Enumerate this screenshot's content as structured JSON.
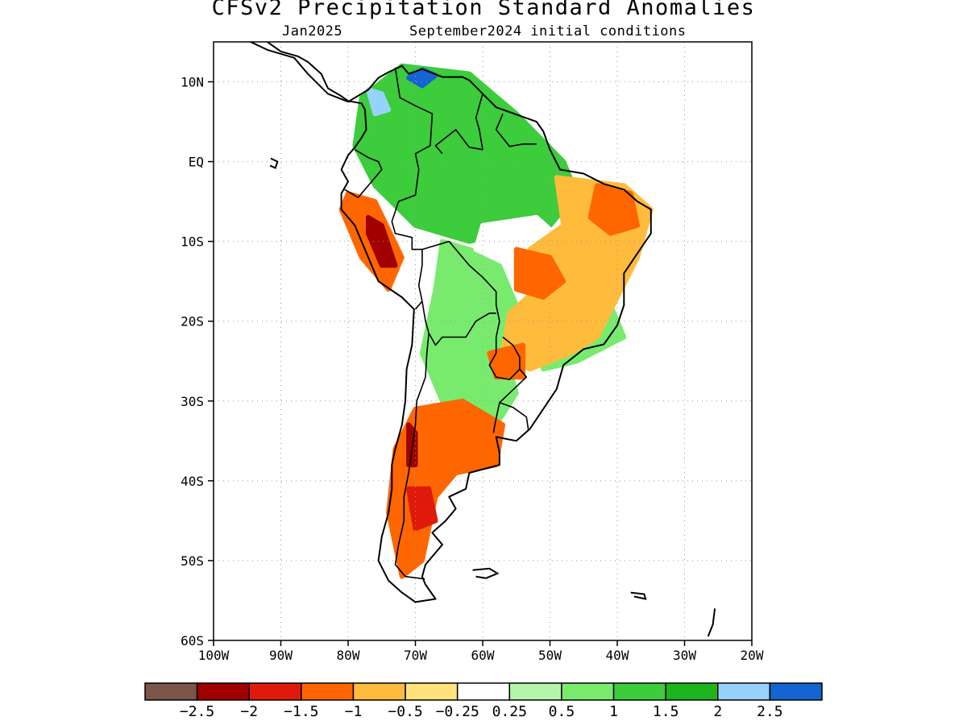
{
  "title": "CFSv2 Precipitation Standard Anomalies",
  "subtitle": {
    "valid_month": "Jan2025",
    "init": "September2024 initial conditions"
  },
  "map": {
    "lon_range": [
      -100,
      -20
    ],
    "lat_range": [
      -60,
      15
    ],
    "lat_ticks": [
      {
        "lat": 10,
        "label": "10N"
      },
      {
        "lat": 0,
        "label": "EQ"
      },
      {
        "lat": -10,
        "label": "10S"
      },
      {
        "lat": -20,
        "label": "20S"
      },
      {
        "lat": -30,
        "label": "30S"
      },
      {
        "lat": -40,
        "label": "40S"
      },
      {
        "lat": -50,
        "label": "50S"
      },
      {
        "lat": -60,
        "label": "60S"
      }
    ],
    "lon_ticks": [
      {
        "lon": -100,
        "label": "100W"
      },
      {
        "lon": -90,
        "label": "90W"
      },
      {
        "lon": -80,
        "label": "80W"
      },
      {
        "lon": -70,
        "label": "70W"
      },
      {
        "lon": -60,
        "label": "60W"
      },
      {
        "lon": -50,
        "label": "50W"
      },
      {
        "lon": -40,
        "label": "40W"
      },
      {
        "lon": -30,
        "label": "30W"
      },
      {
        "lon": -20,
        "label": "20W"
      }
    ],
    "grid": "dotted",
    "anomaly_fields": [
      {
        "name": "northern-wet-region",
        "value_class": 1.25,
        "outline": [
          [
            -78,
            8
          ],
          [
            -72,
            12
          ],
          [
            -62,
            11
          ],
          [
            -55,
            6
          ],
          [
            -48,
            0
          ],
          [
            -46,
            -4
          ],
          [
            -50,
            -8
          ],
          [
            -56,
            -9
          ],
          [
            -62,
            -10
          ],
          [
            -70,
            -8
          ],
          [
            -76,
            -3
          ],
          [
            -79,
            2
          ]
        ]
      },
      {
        "name": "southern-wet-region",
        "value_class": 0.75,
        "outline": [
          [
            -66,
            -10
          ],
          [
            -58,
            -12
          ],
          [
            -55,
            -18
          ],
          [
            -57,
            -23
          ],
          [
            -55,
            -29
          ],
          [
            -58,
            -33
          ],
          [
            -62,
            -31
          ],
          [
            -66,
            -30
          ],
          [
            -69,
            -24
          ],
          [
            -67,
            -16
          ]
        ]
      },
      {
        "name": "atlantic-southeast-wet",
        "value_class": 0.5,
        "outline": [
          [
            -47,
            -20
          ],
          [
            -41,
            -18
          ],
          [
            -39,
            -22
          ],
          [
            -46,
            -25
          ],
          [
            -51,
            -26
          ],
          [
            -52,
            -22
          ]
        ]
      },
      {
        "name": "central-brazil-neutral",
        "value_class": 0.0,
        "outline": [
          [
            -60,
            -8
          ],
          [
            -52,
            -7
          ],
          [
            -48,
            -10
          ],
          [
            -50,
            -14
          ],
          [
            -56,
            -13
          ],
          [
            -61,
            -11
          ]
        ]
      },
      {
        "name": "brazil-dry-region",
        "value_class": -0.75,
        "outline": [
          [
            -49,
            -2
          ],
          [
            -39,
            -3
          ],
          [
            -35,
            -6
          ],
          [
            -37,
            -12
          ],
          [
            -40,
            -17
          ],
          [
            -43,
            -22
          ],
          [
            -47,
            -24
          ],
          [
            -53,
            -26
          ],
          [
            -57,
            -24
          ],
          [
            -56,
            -19
          ],
          [
            -52,
            -16
          ],
          [
            -53,
            -11
          ],
          [
            -48,
            -8
          ]
        ]
      },
      {
        "name": "ne-brazil-strong-dry",
        "value_class": -1.25,
        "outline": [
          [
            -43,
            -3
          ],
          [
            -38,
            -4
          ],
          [
            -37,
            -8
          ],
          [
            -41,
            -9
          ],
          [
            -44,
            -7
          ]
        ]
      },
      {
        "name": "mato-grosso-strong-dry",
        "value_class": -1.25,
        "outline": [
          [
            -55,
            -11
          ],
          [
            -50,
            -12
          ],
          [
            -48,
            -15
          ],
          [
            -51,
            -17
          ],
          [
            -55,
            -16
          ]
        ]
      },
      {
        "name": "paraguay-dry",
        "value_class": -1.25,
        "outline": [
          [
            -59,
            -24
          ],
          [
            -54,
            -23
          ],
          [
            -54,
            -27
          ],
          [
            -58,
            -27
          ]
        ]
      },
      {
        "name": "peru-dry",
        "value_class": -1.0,
        "outline": [
          [
            -80,
            -4
          ],
          [
            -76,
            -5
          ],
          [
            -72,
            -12
          ],
          [
            -74,
            -16
          ],
          [
            -78,
            -12
          ],
          [
            -81,
            -6
          ]
        ]
      },
      {
        "name": "peru-strong-dry",
        "value_class": -2.0,
        "outline": [
          [
            -77,
            -7
          ],
          [
            -75,
            -8
          ],
          [
            -73,
            -13
          ],
          [
            -75,
            -13
          ],
          [
            -77,
            -9
          ]
        ]
      },
      {
        "name": "argentina-dry",
        "value_class": -1.0,
        "outline": [
          [
            -63,
            -30
          ],
          [
            -57,
            -33
          ],
          [
            -58,
            -38
          ],
          [
            -64,
            -39
          ],
          [
            -67,
            -42
          ],
          [
            -69,
            -50
          ],
          [
            -72,
            -52
          ],
          [
            -74,
            -44
          ],
          [
            -73,
            -36
          ],
          [
            -70,
            -31
          ]
        ]
      },
      {
        "name": "chile-strong-dry",
        "value_class": -2.0,
        "outline": [
          [
            -71,
            -33
          ],
          [
            -70,
            -34
          ],
          [
            -70,
            -38
          ],
          [
            -71,
            -38
          ]
        ]
      },
      {
        "name": "patagonia-strong-dry",
        "value_class": -1.5,
        "outline": [
          [
            -71,
            -41
          ],
          [
            -68,
            -41
          ],
          [
            -67,
            -45
          ],
          [
            -70,
            -46
          ]
        ]
      },
      {
        "name": "venezuela-very-wet",
        "value_class": 2.5,
        "outline": [
          [
            -71,
            10.5
          ],
          [
            -69,
            11.5
          ],
          [
            -67,
            10.8
          ],
          [
            -69,
            9.5
          ]
        ]
      },
      {
        "name": "colombia-very-wet",
        "value_class": 2.25,
        "outline": [
          [
            -77,
            9
          ],
          [
            -75,
            8.5
          ],
          [
            -74,
            6.5
          ],
          [
            -76,
            6
          ]
        ]
      }
    ]
  },
  "colorbar": {
    "colors": [
      "#7b5548",
      "#a00000",
      "#e01a0a",
      "#ff6600",
      "#ffbb3c",
      "#ffe27a",
      "#ffffff",
      "#b4f5aa",
      "#78eb6e",
      "#3ccc3c",
      "#1eb41e",
      "#96d2fa",
      "#1464d2"
    ],
    "labels": [
      "−2.5",
      "−2",
      "−1.5",
      "−1",
      "−0.5",
      "−0.25",
      "0.25",
      "0.5",
      "1",
      "1.5",
      "2",
      "2.5"
    ]
  }
}
